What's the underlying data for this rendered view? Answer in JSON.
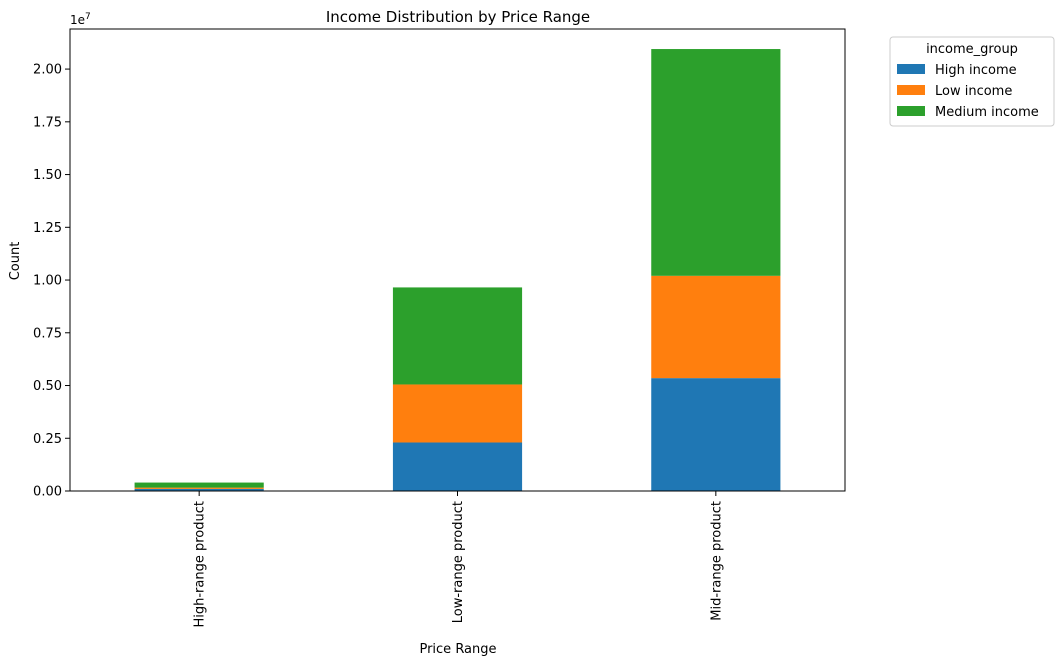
{
  "chart_data": {
    "type": "bar",
    "stacked": true,
    "title": "Income Distribution by Price Range",
    "xlabel": "Price Range",
    "ylabel": "Count",
    "y_offset_label": "1e7",
    "categories": [
      "High-range product",
      "Low-range product",
      "Mid-range product"
    ],
    "series": [
      {
        "name": "High income",
        "color": "#1f77b4",
        "values": [
          100000,
          2300000,
          5350000
        ]
      },
      {
        "name": "Low income",
        "color": "#ff7f0e",
        "values": [
          60000,
          2750000,
          4850000
        ]
      },
      {
        "name": "Medium income",
        "color": "#2ca02c",
        "values": [
          240000,
          4600000,
          10750000
        ]
      }
    ],
    "ylim": [
      0,
      21900000
    ],
    "yticks": [
      0,
      2500000,
      5000000,
      7500000,
      10000000,
      12500000,
      15000000,
      17500000,
      20000000
    ],
    "ytick_labels": [
      "0.00",
      "0.25",
      "0.50",
      "0.75",
      "1.00",
      "1.25",
      "1.50",
      "1.75",
      "2.00"
    ],
    "grid": false,
    "legend": {
      "title": "income_group",
      "placement": "outside-top-right"
    }
  }
}
